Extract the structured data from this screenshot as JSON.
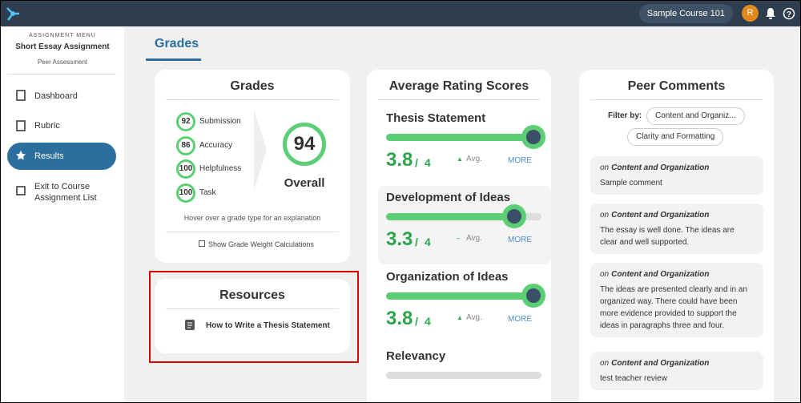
{
  "header": {
    "course": "Sample Course 101",
    "avatar": "R"
  },
  "sidebar": {
    "menu_label": "ASSIGNMENT MENU",
    "assignment": "Short Essay Assignment",
    "assessment_type": "Peer Assessment",
    "items": [
      "Dashboard",
      "Rubric",
      "Results",
      "Exit to Course Assignment List"
    ]
  },
  "tab": "Grades",
  "grades": {
    "title": "Grades",
    "items": [
      {
        "value": 92,
        "label": "Submission"
      },
      {
        "value": 86,
        "label": "Accuracy"
      },
      {
        "value": 100,
        "label": "Helpfulness"
      },
      {
        "value": 100,
        "label": "Task"
      }
    ],
    "overall": {
      "value": 94,
      "label": "Overall"
    },
    "hint": "Hover over a grade type for an explanation",
    "checkbox": "Show Grade Weight Calculations"
  },
  "resources": {
    "title": "Resources",
    "items": [
      "How to Write a Thesis Statement"
    ]
  },
  "ratings": {
    "title": "Average Rating Scores",
    "separator": "/",
    "max": 4,
    "avg_label": "Avg.",
    "more": "MORE",
    "items": [
      {
        "name": "Thesis Statement",
        "score": 3.8,
        "trend": "▲"
      },
      {
        "name": "Development of Ideas",
        "score": 3.3,
        "trend": "–"
      },
      {
        "name": "Organization of Ideas",
        "score": 3.8,
        "trend": "▲"
      },
      {
        "name": "Relevancy"
      }
    ]
  },
  "comments": {
    "title": "Peer Comments",
    "filter_label": "Filter by:",
    "filters": [
      "Content and Organiz...",
      "Clarity and Formatting"
    ],
    "prefix": "on",
    "items": [
      {
        "criterion": "Content and Organization",
        "text": "Sample comment"
      },
      {
        "criterion": "Content and Organization",
        "text": "The essay is well done. The ideas are clear and well supported."
      },
      {
        "criterion": "Content and Organization",
        "text": "The ideas are presented clearly and in an organized way. There could have been more evidence provided to support the ideas in paragraphs three and four."
      },
      {
        "criterion": "Content and Organization",
        "text": "test teacher review"
      }
    ]
  }
}
